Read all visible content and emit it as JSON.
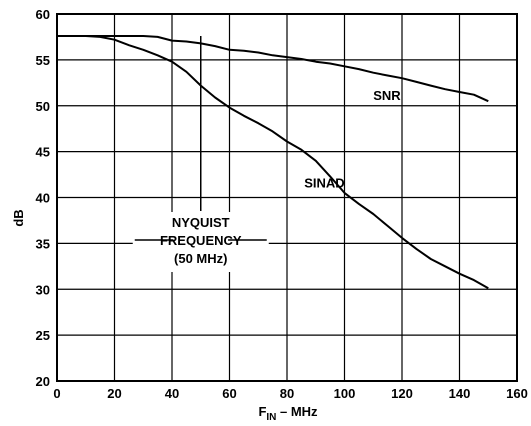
{
  "chart_data": {
    "type": "line",
    "title": "",
    "xlabel": {
      "main": "F",
      "sub": "IN",
      "rest": " – MHz"
    },
    "ylabel": "dB",
    "xlim": [
      0,
      160
    ],
    "ylim": [
      20,
      60
    ],
    "x_ticks": [
      0,
      20,
      40,
      60,
      80,
      100,
      120,
      140,
      160
    ],
    "y_ticks": [
      20,
      25,
      30,
      35,
      40,
      45,
      50,
      55,
      60
    ],
    "grid": true,
    "legend": "none",
    "series": [
      {
        "name": "SNR",
        "x": [
          0,
          5,
          10,
          15,
          20,
          25,
          30,
          35,
          40,
          45,
          50,
          55,
          60,
          65,
          70,
          75,
          80,
          85,
          90,
          95,
          100,
          105,
          110,
          115,
          120,
          125,
          130,
          135,
          140,
          145,
          150
        ],
        "y": [
          57.6,
          57.6,
          57.6,
          57.6,
          57.6,
          57.6,
          57.6,
          57.5,
          57.1,
          57.0,
          56.8,
          56.5,
          56.1,
          56.0,
          55.8,
          55.5,
          55.3,
          55.1,
          54.8,
          54.6,
          54.3,
          54.0,
          53.6,
          53.3,
          53.0,
          52.6,
          52.2,
          51.8,
          51.5,
          51.2,
          50.5
        ]
      },
      {
        "name": "SINAD",
        "x": [
          0,
          5,
          10,
          15,
          20,
          25,
          30,
          35,
          40,
          45,
          50,
          55,
          60,
          65,
          70,
          75,
          80,
          85,
          90,
          95,
          100,
          105,
          110,
          115,
          120,
          125,
          130,
          135,
          140,
          145,
          150
        ],
        "y": [
          57.6,
          57.6,
          57.6,
          57.5,
          57.2,
          56.6,
          56.1,
          55.5,
          54.8,
          53.7,
          52.2,
          50.9,
          49.8,
          48.9,
          48.1,
          47.2,
          46.1,
          45.2,
          44.0,
          42.3,
          40.5,
          39.3,
          38.2,
          36.9,
          35.6,
          34.4,
          33.3,
          32.5,
          31.7,
          31.0,
          30.1
        ]
      }
    ],
    "series_labels": [
      {
        "text": "SNR",
        "x": 110,
        "y": 50.6
      },
      {
        "text": "SINAD",
        "x": 86,
        "y": 41.1
      }
    ],
    "annotation": {
      "lines": [
        "NYQUIST",
        "FREQUENCY",
        "(50 MHz)"
      ],
      "x": 50
    }
  },
  "colors": {
    "line": "#000000",
    "grid": "#000000",
    "background": "#ffffff"
  }
}
